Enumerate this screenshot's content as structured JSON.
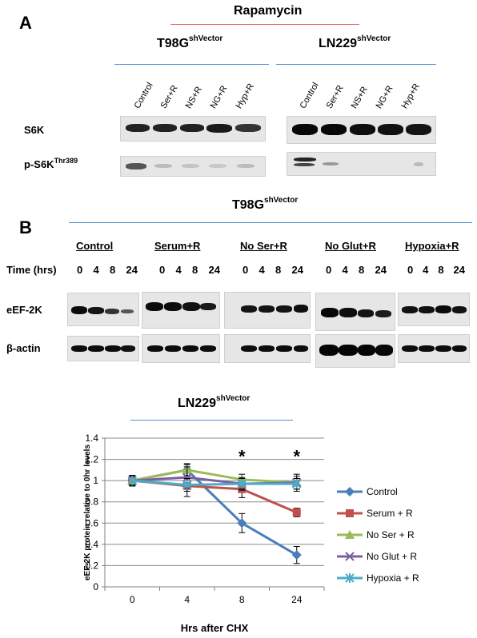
{
  "panelA": {
    "letter": "A",
    "treatment": "Rapamycin",
    "cell_left": "T98G",
    "cell_left_sup": "shVector",
    "cell_right": "LN229",
    "cell_right_sup": "shVector",
    "lanes": [
      "Control",
      "Ser+R",
      "NS+R",
      "NG+R",
      "Hyp+R"
    ],
    "row1": "S6K",
    "row2_main": "p-S6K",
    "row2_sup": "Thr389"
  },
  "panelB": {
    "letter": "B",
    "cell": "T98G",
    "cell_sup": "shVector",
    "groups": [
      "Control",
      "Serum+R",
      "No Ser+R",
      "No Glut+R",
      "Hypoxia+R"
    ],
    "time_label": "Time (hrs)",
    "timepoints": [
      "0",
      "4",
      "8",
      "24"
    ],
    "row1": "eEF-2K",
    "row2": "β-actin"
  },
  "chart_data": {
    "type": "line",
    "title": "LN229",
    "title_sup": "shVector",
    "xlabel": "Hrs after CHX",
    "ylabel": "eEF-2K protein relative to 0hr levels",
    "categories": [
      "0",
      "4",
      "8",
      "24"
    ],
    "ylim": [
      0,
      1.4
    ],
    "yticks": [
      "0",
      "0.2",
      "0.4",
      "0.6",
      "0.8",
      "1",
      "1.2",
      "1.4"
    ],
    "grid": true,
    "legend": "right",
    "annotations": [
      "*",
      "*"
    ],
    "series": [
      {
        "name": "Control",
        "values": [
          1.0,
          1.1,
          0.6,
          0.3
        ],
        "errors": [
          0.05,
          0.05,
          0.09,
          0.08
        ],
        "color": "#4a7ebb",
        "marker": "diamond"
      },
      {
        "name": "Serum + R",
        "values": [
          1.0,
          0.95,
          0.92,
          0.7
        ],
        "errors": [
          0.05,
          0.1,
          0.08,
          0.04
        ],
        "color": "#c0504d",
        "marker": "square"
      },
      {
        "name": "No Ser + R",
        "values": [
          1.0,
          1.1,
          1.01,
          0.98
        ],
        "errors": [
          0.05,
          0.06,
          0.05,
          0.06
        ],
        "color": "#9bbb59",
        "marker": "triangle"
      },
      {
        "name": "No Glut + R",
        "values": [
          1.0,
          1.03,
          0.97,
          0.98
        ],
        "errors": [
          0.04,
          0.1,
          0.06,
          0.08
        ],
        "color": "#7d60a0",
        "marker": "x"
      },
      {
        "name": "Hypoxia + R",
        "values": [
          1.0,
          0.96,
          0.97,
          0.97
        ],
        "errors": [
          0.04,
          0.06,
          0.05,
          0.05
        ],
        "color": "#4bacc6",
        "marker": "star"
      }
    ]
  }
}
